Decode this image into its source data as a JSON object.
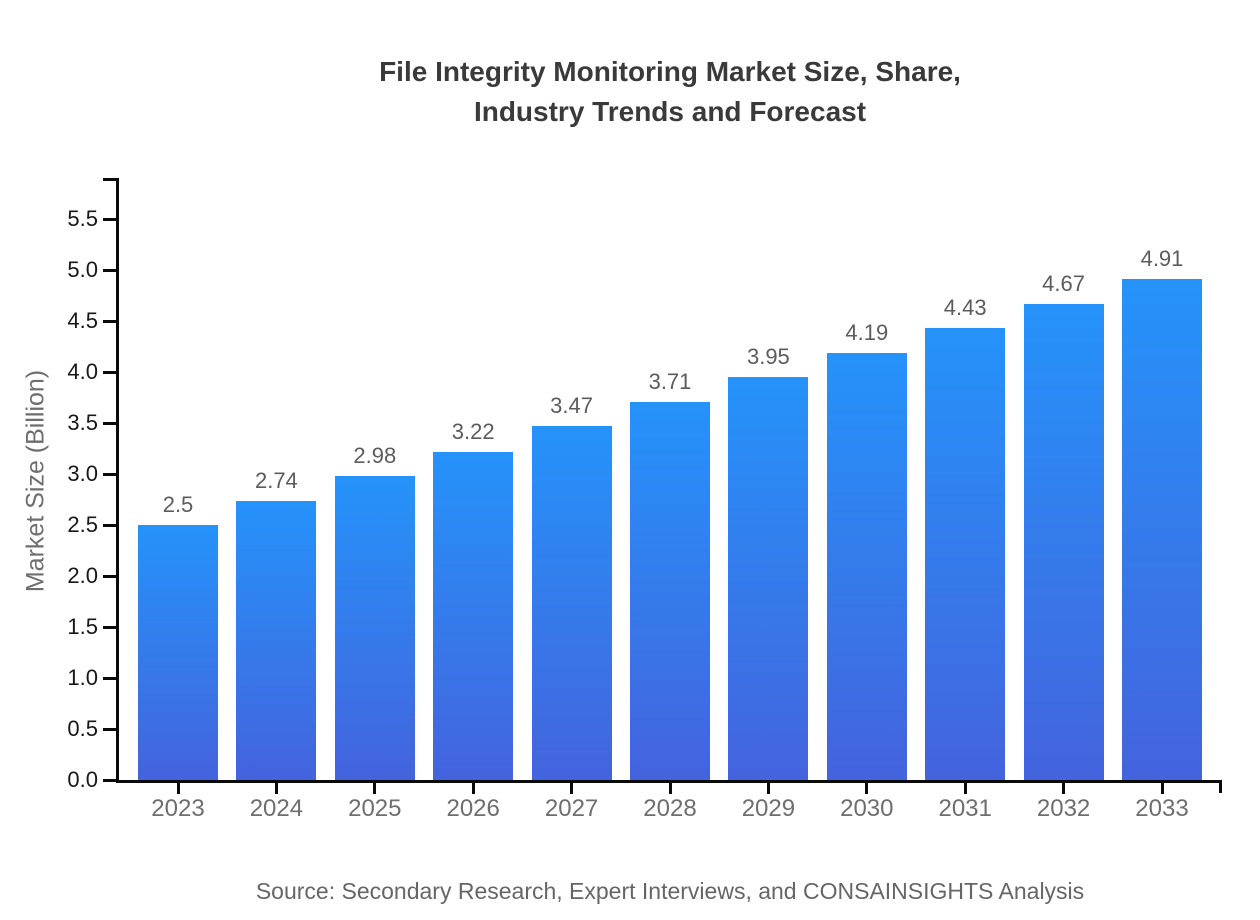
{
  "header": {
    "title_line1": "File Integrity Monitoring Market Size, Share,",
    "title_line2": "Industry Trends and Forecast"
  },
  "footer": {
    "source": "Source: Secondary Research, Expert Interviews, and CONSAINSIGHTS Analysis"
  },
  "chart_data": {
    "type": "bar",
    "title": "File Integrity Monitoring Market Size, Share, Industry Trends and Forecast",
    "xlabel": "",
    "ylabel": "Market Size (Billion)",
    "categories": [
      "2023",
      "2024",
      "2025",
      "2026",
      "2027",
      "2028",
      "2029",
      "2030",
      "2031",
      "2032",
      "2033"
    ],
    "values": [
      2.5,
      2.74,
      2.98,
      3.22,
      3.47,
      3.71,
      3.95,
      4.19,
      4.43,
      4.67,
      4.91
    ],
    "value_labels": [
      "2.5",
      "2.74",
      "2.98",
      "3.22",
      "3.47",
      "3.71",
      "3.95",
      "4.19",
      "4.43",
      "4.67",
      "4.91"
    ],
    "ylim": [
      0.0,
      5.9
    ],
    "yticks": [
      0.0,
      0.5,
      1.0,
      1.5,
      2.0,
      2.5,
      3.0,
      3.5,
      4.0,
      4.5,
      5.0,
      5.5
    ],
    "ytick_labels": [
      "0.0",
      "0.5",
      "1.0",
      "1.5",
      "2.0",
      "2.5",
      "3.0",
      "3.5",
      "4.0",
      "4.5",
      "5.0",
      "5.5"
    ],
    "grid": false,
    "legend_position": "none",
    "colors": {
      "bar_gradient_top": "#2593FA",
      "bar_gradient_bottom": "#4463DE",
      "axis": "#0a0a0a",
      "title_text": "#3a3a3a",
      "tick_label_text": "#171717",
      "category_label_text": "#6e6e6e",
      "value_label_text": "#5c5c5c",
      "source_text": "#666666"
    }
  }
}
